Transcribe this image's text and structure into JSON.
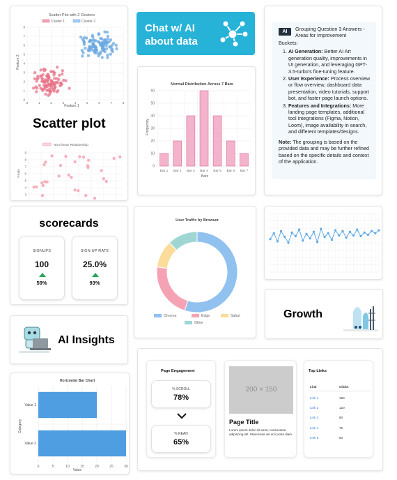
{
  "scatter_card": {
    "caption": "Scatter plot",
    "chart_data": {
      "type": "scatter",
      "title": "Scatter Plot with 2 Clusters",
      "xlabel": "Feature 1",
      "ylabel": "Feature 2",
      "xlim": [
        0,
        8
      ],
      "ylim": [
        0,
        8
      ],
      "legend_position": "top",
      "series": [
        {
          "name": "Cluster 1",
          "color": "#e8748a",
          "center": [
            2,
            2
          ],
          "spread": 1.1,
          "points": 110
        },
        {
          "name": "Cluster 2",
          "color": "#6aa8e0",
          "center": [
            6,
            6
          ],
          "spread": 1.1,
          "points": 110
        }
      ],
      "x_ticks": [
        "0",
        "1",
        "2",
        "3",
        "4",
        "5",
        "6",
        "7",
        "8"
      ],
      "y_ticks": [
        "0",
        "1",
        "2",
        "3",
        "4",
        "5",
        "6",
        "7",
        "8"
      ]
    },
    "nonlinear_chart": {
      "type": "scatter",
      "legend": "Non-linear Relationship",
      "ylabel": "Y-Axis",
      "color": "#f4a3b4",
      "y_ticks": [
        "9",
        "8",
        "7",
        "6",
        "5",
        "4",
        "3"
      ]
    }
  },
  "chat_banner": {
    "line1": "Chat w/ AI",
    "line2": "about data"
  },
  "histogram_card": {
    "chart_data": {
      "type": "bar",
      "title": "Normal Distribution Across 7 Bars",
      "xlabel": "Bars",
      "ylabel": "Frequency",
      "categories": [
        "Bar 1",
        "Bar 2",
        "Bar 3",
        "Bar 4",
        "Bar 5",
        "Bar 6",
        "Bar 7"
      ],
      "values": [
        10,
        20,
        40,
        60,
        40,
        20,
        10
      ],
      "ylim": [
        0,
        60
      ],
      "y_ticks": [
        0,
        10,
        20,
        30,
        40,
        50,
        60
      ],
      "color": "#f4b3cc",
      "border_color": "#e080a8"
    }
  },
  "ai_grouping_card": {
    "badge": "AI",
    "title": "Grouping Question 3 Answers - Areas for Improvement",
    "buckets_label": "Buckets:",
    "items": [
      {
        "head": "AI Generation:",
        "body": " Better AI Art generation quality, improvements in UI generation, and leveraging GPT-3.5-turbo's fine-tuning feature."
      },
      {
        "head": "User Experience:",
        "body": " Process overview or flow overview, dashboard data presentation, video tutorials, support bot, and faster page launch options."
      },
      {
        "head": "Features and Integrations:",
        "body": " More landing page templates, additional tool integrations (Figma, Notion, Loom), image availability in search, and different templates/designs."
      }
    ],
    "note_head": "Note:",
    "note_body": " The grouping is based on the provided data and may be further refined based on the specific details and context of the application."
  },
  "scorecards_card": {
    "title": "scorecards",
    "tiles": [
      {
        "label": "SIGNUPS",
        "value": "100",
        "change": "59%"
      },
      {
        "label": "SIGN UP RATE",
        "value": "25.0%",
        "change": "93%"
      }
    ]
  },
  "donut_card": {
    "chart_data": {
      "type": "pie",
      "title": "User Traffic by Browser",
      "categories": [
        "Chrome",
        "Edge",
        "Safari",
        "Other"
      ],
      "values": [
        55,
        22,
        11,
        12
      ],
      "colors": [
        "#90c1ef",
        "#f5a3b4",
        "#fbdc9a",
        "#9fd6d4"
      ],
      "legend_position": "bottom"
    }
  },
  "line_card": {
    "chart_data": {
      "type": "line",
      "color": "#5ea9e8",
      "values": [
        4.5,
        5.3,
        4.2,
        5.6,
        4.8,
        4.0,
        5.4,
        4.9,
        5.8,
        4.3,
        5.2,
        4.6,
        5.5,
        4.1,
        5.9,
        4.8,
        5.3,
        4.4,
        5.7,
        5.0,
        5.6,
        4.7,
        5.5,
        5.0,
        5.8,
        4.9,
        5.4,
        5.1,
        5.6,
        5.3,
        5.7
      ],
      "ylim": [
        0,
        8
      ]
    }
  },
  "growth_card": {
    "label": "Growth"
  },
  "insights_card": {
    "label": "AI Insights"
  },
  "hbar_card": {
    "chart_data": {
      "type": "bar",
      "orientation": "horizontal",
      "title": "Horizontal Bar Chart",
      "xlabel": "Value",
      "ylabel": "Category",
      "categories": [
        "Value 1",
        "Value 2"
      ],
      "values": [
        20,
        30
      ],
      "xlim": [
        0,
        30
      ],
      "x_ticks": [
        0,
        5,
        10,
        15,
        20,
        25,
        30
      ],
      "color": "#4f9ee2"
    }
  },
  "landing_card": {
    "engagement": {
      "title": "Page Engagement",
      "tiles": [
        {
          "label": "% SCROLL",
          "value": "78%"
        },
        {
          "label": "% READ",
          "value": "65%"
        }
      ]
    },
    "page": {
      "placeholder": "200 × 150",
      "title": "Page Title",
      "body": "Lorem ipsum dolor sit amet, consectetur adipiscing elit. Maecenas vel orci porta diam."
    },
    "top_links": {
      "title": "Top Links",
      "col_link": "Link",
      "col_clicks": "Clicks",
      "rows": [
        {
          "link": "Link 1",
          "clicks": "150"
        },
        {
          "link": "Link 2",
          "clicks": "120"
        },
        {
          "link": "Link 3",
          "clicks": "90"
        },
        {
          "link": "Link 4",
          "clicks": "75"
        },
        {
          "link": "Link 5",
          "clicks": "60"
        }
      ]
    }
  }
}
